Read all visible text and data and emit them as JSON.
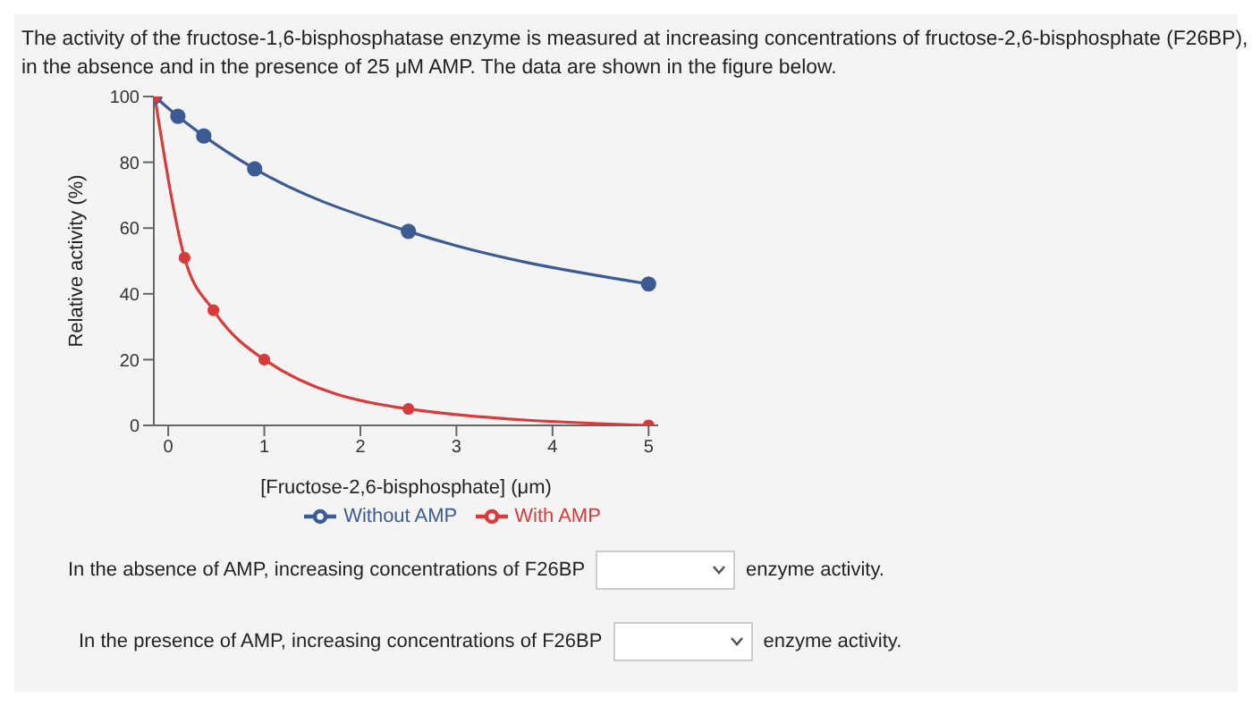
{
  "chart_data": {
    "type": "line",
    "title": "The activity of the fructose-1,6-bisphosphatase enzyme is measured at increasing concentrations of fructose-2,6-bisphosphate (F26BP), in the absence and in the presence of 25 μM AMP. The data are shown in the figure below.",
    "xlabel": "[Fructose-2,6-bisphosphate] (μm)",
    "ylabel": "Relative activity (%)",
    "series": [
      {
        "name": "Without AMP",
        "color": "#3b5b92",
        "x": [
          -0.14,
          0.1,
          0.37,
          0.9,
          2.5,
          5
        ],
        "values": [
          100,
          94,
          88,
          78,
          59,
          43
        ]
      },
      {
        "name": "With AMP",
        "color": "#d93a3a",
        "x": [
          -0.14,
          0.17,
          0.47,
          1.0,
          2.5,
          5
        ],
        "values": [
          100,
          51,
          35,
          20,
          5,
          0
        ]
      }
    ],
    "xlim": [
      -0.15,
      5.1
    ],
    "xticks": [
      0,
      1,
      2,
      3,
      4,
      5
    ],
    "ylim": [
      0,
      100
    ],
    "yticks": [
      0,
      20,
      40,
      60,
      80,
      100
    ],
    "grid": false,
    "legend": "bottom",
    "marker": "circle",
    "line_style": "solid",
    "annotations": [
      "In the absence of AMP, increasing concentrations of F26BP",
      "enzyme activity.",
      "In the presence of AMP, increasing concentrations of F26BP",
      "enzyme activity."
    ]
  }
}
